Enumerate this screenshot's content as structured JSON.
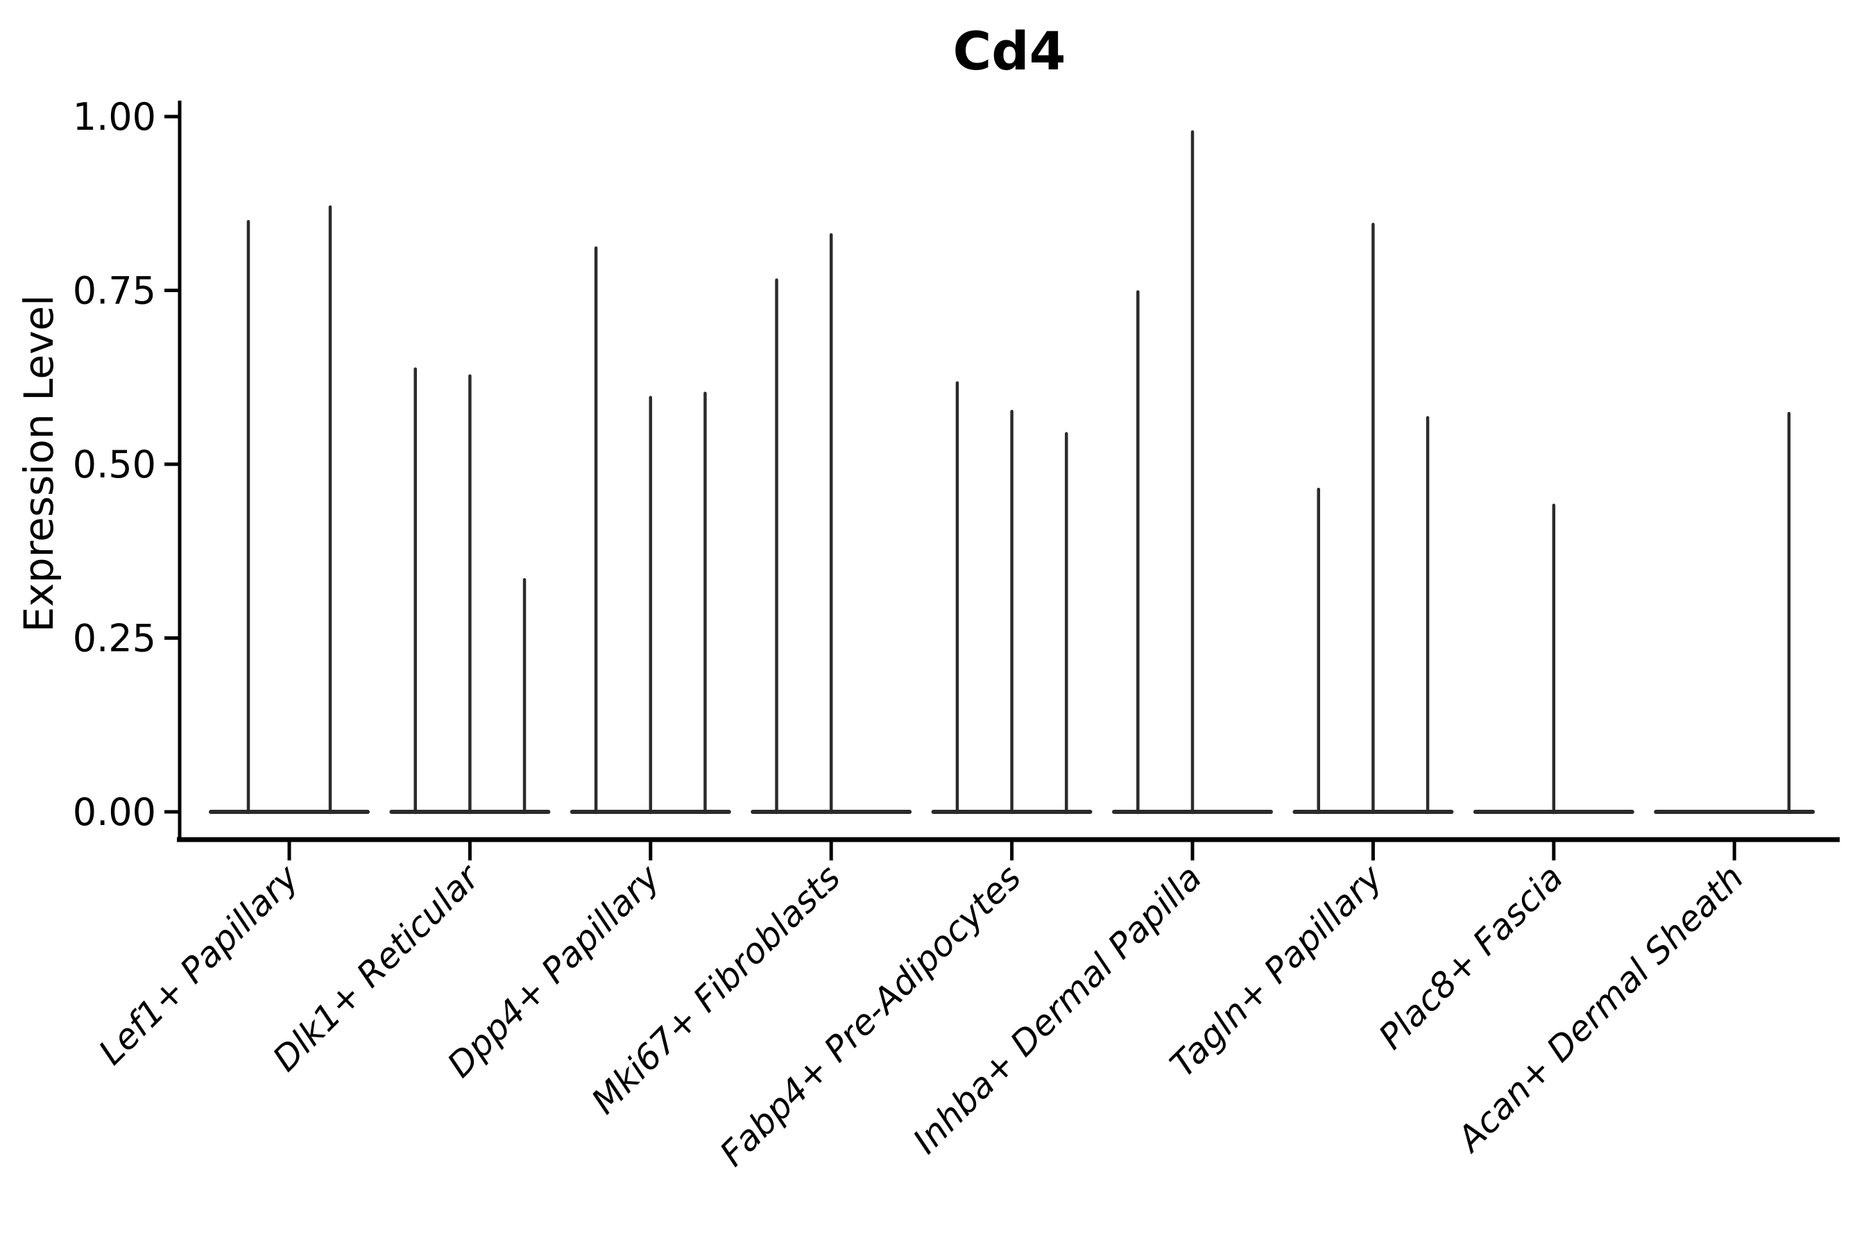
{
  "figure": {
    "title": "Cd4"
  },
  "chart_data": {
    "type": "violin",
    "title": "Cd4",
    "xlabel": "",
    "ylabel": "Expression Level",
    "ylim": [
      0,
      1.04
    ],
    "y_ticks": [
      0,
      0.25,
      0.5,
      0.75,
      1.0
    ],
    "y_tick_labels": [
      "0.00",
      "0.25",
      "0.50",
      "0.75",
      "1.00"
    ],
    "categories": [
      "Lef1+ Papillary",
      "Dlk1+ Reticular",
      "Dpp4+ Papillary",
      "Mki67+ Fibroblasts",
      "Fabp4+ Pre-Adipocytes",
      "Inhba+ Dermal Papilla",
      "Tagln+ Papillary",
      "Plac8+ Fascia",
      "Acan+ Dermal Sheath"
    ],
    "violins": [
      {
        "category": "Lef1+ Papillary",
        "spike_maxima": [
          0.849,
          0.87
        ]
      },
      {
        "category": "Dlk1+ Reticular",
        "spike_maxima": [
          0.637,
          0.627,
          0.334
        ]
      },
      {
        "category": "Dpp4+ Papillary",
        "spike_maxima": [
          0.811,
          0.596,
          0.602
        ]
      },
      {
        "category": "Mki67+ Fibroblasts",
        "spike_maxima": [
          0.765,
          0.83,
          0
        ]
      },
      {
        "category": "Fabp4+ Pre-Adipocytes",
        "spike_maxima": [
          0.617,
          0.576,
          0.544
        ]
      },
      {
        "category": "Inhba+ Dermal Papilla",
        "spike_maxima": [
          0.748,
          0.978,
          0
        ]
      },
      {
        "category": "Tagln+ Papillary",
        "spike_maxima": [
          0.464,
          0.845,
          0.567
        ]
      },
      {
        "category": "Plac8+ Fascia",
        "spike_maxima": [
          0,
          0.441,
          0
        ]
      },
      {
        "category": "Acan+ Dermal Sheath",
        "spike_maxima": [
          0,
          0,
          0.573
        ]
      }
    ],
    "violin_style": "collapsed violins drawn as thin vertical spikes above a flat baseline at 0; each listed value is the top (max expression) of one sub-violin",
    "legend": "none",
    "grid": false,
    "colors": {
      "violin_stroke": "#2b2b2b",
      "axis": "#000000",
      "text": "#000000",
      "background": "#ffffff"
    }
  }
}
